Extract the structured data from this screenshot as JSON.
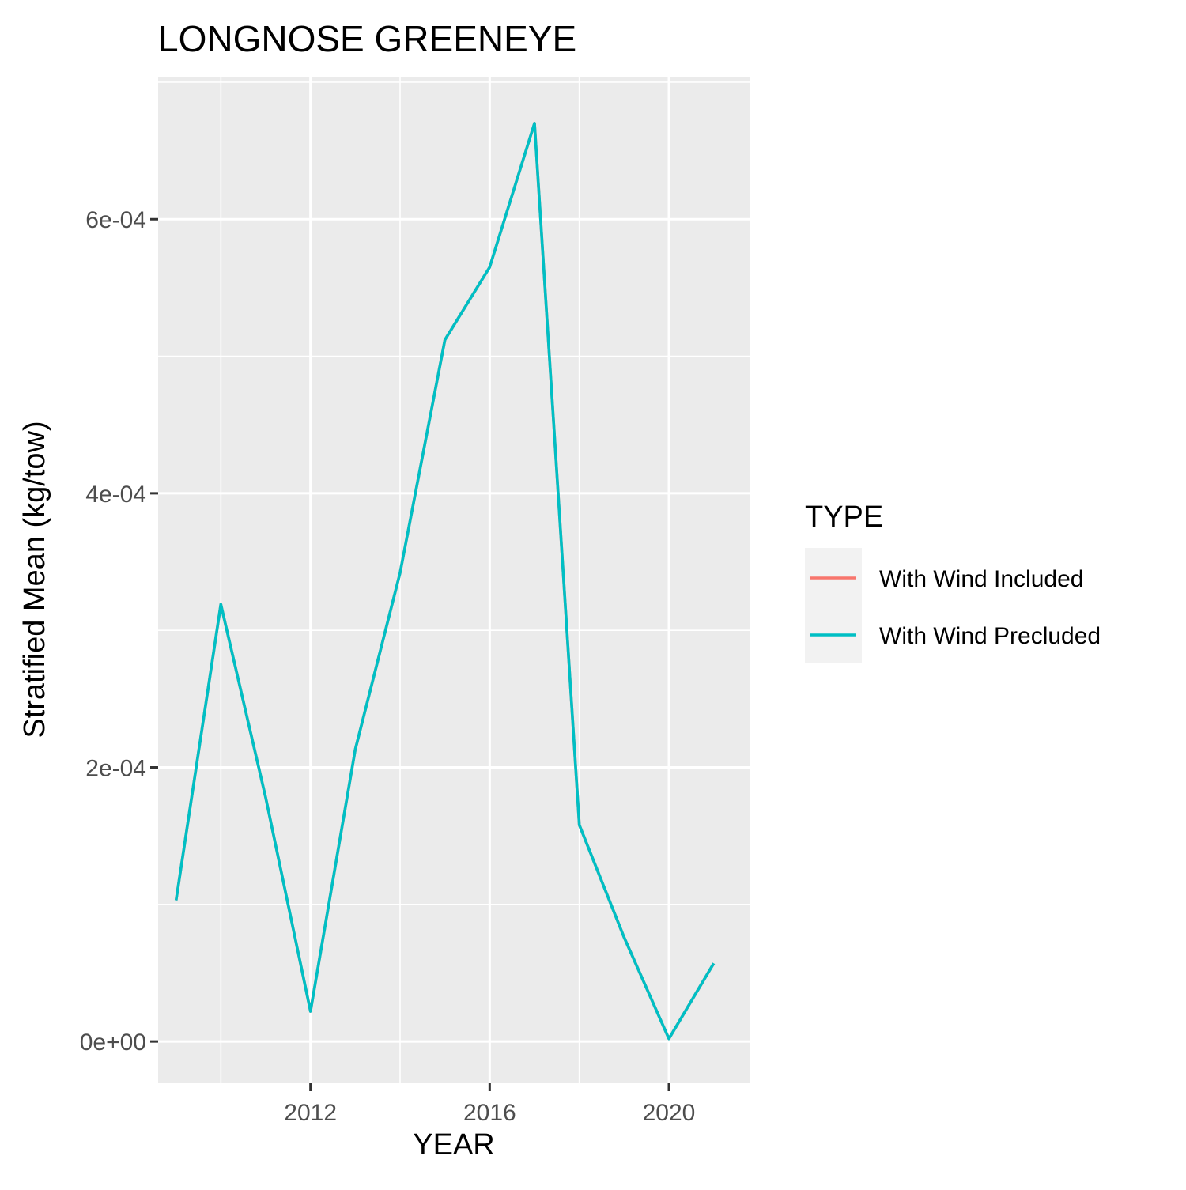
{
  "chart_data": {
    "type": "line",
    "title": "LONGNOSE GREENEYE",
    "xlabel": "YEAR",
    "ylabel": "Stratified Mean (kg/tow)",
    "x_ticks": [
      2012,
      2016,
      2020
    ],
    "x_tick_labels": [
      "2012",
      "2016",
      "2020"
    ],
    "y_ticks": [
      0,
      0.0002,
      0.0004,
      0.0006
    ],
    "y_tick_labels": [
      "0e+00",
      "2e-04",
      "4e-04",
      "6e-04"
    ],
    "xlim": [
      2008.6,
      2021.8
    ],
    "ylim": [
      -3.05e-05,
      0.000704
    ],
    "grid": true,
    "legend": {
      "title": "TYPE",
      "position": "right",
      "entries": [
        {
          "label": "With Wind Included",
          "color": "#F8766D"
        },
        {
          "label": "With Wind Precluded",
          "color": "#00BFC4"
        }
      ]
    },
    "series": [
      {
        "name": "With Wind Included",
        "color": "#F8766D",
        "x": [
          2009,
          2010,
          2011,
          2012,
          2013,
          2014,
          2015,
          2016,
          2017,
          2018,
          2019,
          2020,
          2021
        ],
        "y": [
          0.000103,
          0.000319,
          0.000178,
          2.2e-05,
          0.000213,
          0.000342,
          0.000512,
          0.000565,
          0.00067,
          0.000158,
          7.6e-05,
          2e-06,
          5.7e-05
        ]
      },
      {
        "name": "With Wind Precluded",
        "color": "#00BFC4",
        "x": [
          2009,
          2010,
          2011,
          2012,
          2013,
          2014,
          2015,
          2016,
          2017,
          2018,
          2019,
          2020,
          2021
        ],
        "y": [
          0.000103,
          0.000319,
          0.000178,
          2.2e-05,
          0.000213,
          0.000342,
          0.000512,
          0.000565,
          0.00067,
          0.000158,
          7.6e-05,
          2e-06,
          5.7e-05
        ]
      }
    ]
  },
  "colors": {
    "panel_background": "#EBEBEB",
    "grid_line": "#FFFFFF",
    "axis_text": "#4D4D4D",
    "legend_key_background": "#F2F2F2"
  }
}
